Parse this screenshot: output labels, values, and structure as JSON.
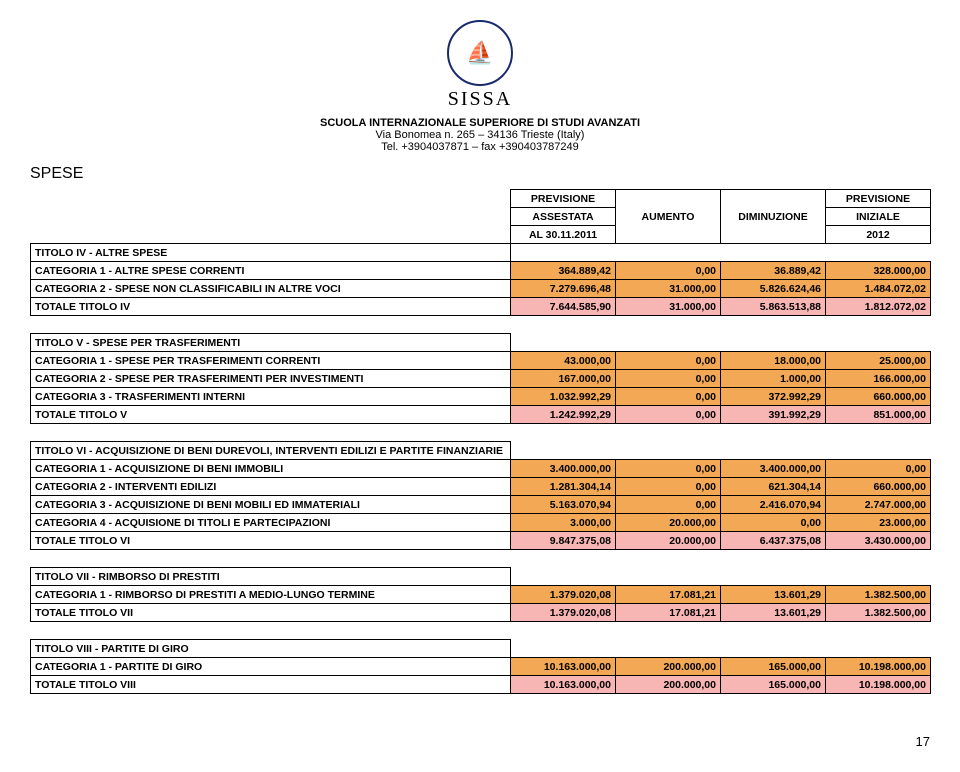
{
  "header": {
    "logo_sub": "SISSA",
    "org": "SCUOLA INTERNAZIONALE SUPERIORE DI STUDI AVANZATI",
    "addr": "Via Bonomea n. 265 – 34136 Trieste (Italy)",
    "tel": "Tel. +3904037871 – fax +390403787249"
  },
  "section": "SPESE",
  "columns": {
    "c1a": "PREVISIONE",
    "c1b": "ASSESTATA",
    "c1c": "AL 30.11.2011",
    "c2": "AUMENTO",
    "c3": "DIMINUZIONE",
    "c4a": "PREVISIONE",
    "c4b": "INIZIALE",
    "c4c": "2012"
  },
  "groups": [
    {
      "title": "TITOLO IV - ALTRE SPESE",
      "rows": [
        {
          "label": "CATEGORIA 1 - ALTRE SPESE CORRENTI",
          "v": [
            "364.889,42",
            "0,00",
            "36.889,42",
            "328.000,00"
          ]
        },
        {
          "label": "CATEGORIA 2 - SPESE NON CLASSIFICABILI IN ALTRE VOCI",
          "v": [
            "7.279.696,48",
            "31.000,00",
            "5.826.624,46",
            "1.484.072,02"
          ]
        }
      ],
      "total": {
        "label": "TOTALE TITOLO IV",
        "v": [
          "7.644.585,90",
          "31.000,00",
          "5.863.513,88",
          "1.812.072,02"
        ]
      }
    },
    {
      "title": "TITOLO V - SPESE PER TRASFERIMENTI",
      "rows": [
        {
          "label": "CATEGORIA 1 - SPESE PER TRASFERIMENTI CORRENTI",
          "v": [
            "43.000,00",
            "0,00",
            "18.000,00",
            "25.000,00"
          ]
        },
        {
          "label": "CATEGORIA 2 - SPESE PER TRASFERIMENTI PER INVESTIMENTI",
          "v": [
            "167.000,00",
            "0,00",
            "1.000,00",
            "166.000,00"
          ]
        },
        {
          "label": "CATEGORIA 3 - TRASFERIMENTI INTERNI",
          "v": [
            "1.032.992,29",
            "0,00",
            "372.992,29",
            "660.000,00"
          ]
        }
      ],
      "total": {
        "label": "TOTALE TITOLO V",
        "v": [
          "1.242.992,29",
          "0,00",
          "391.992,29",
          "851.000,00"
        ]
      }
    },
    {
      "title": "TITOLO VI - ACQUISIZIONE DI BENI DUREVOLI, INTERVENTI EDILIZI E PARTITE FINANZIARIE",
      "rows": [
        {
          "label": "CATEGORIA 1 - ACQUISIZIONE DI BENI IMMOBILI",
          "v": [
            "3.400.000,00",
            "0,00",
            "3.400.000,00",
            "0,00"
          ]
        },
        {
          "label": "CATEGORIA 2 - INTERVENTI EDILIZI",
          "v": [
            "1.281.304,14",
            "0,00",
            "621.304,14",
            "660.000,00"
          ]
        },
        {
          "label": "CATEGORIA 3 - ACQUISIZIONE DI BENI MOBILI ED IMMATERIALI",
          "v": [
            "5.163.070,94",
            "0,00",
            "2.416.070,94",
            "2.747.000,00"
          ]
        },
        {
          "label": "CATEGORIA 4 - ACQUISIONE DI TITOLI E PARTECIPAZIONI",
          "v": [
            "3.000,00",
            "20.000,00",
            "0,00",
            "23.000,00"
          ]
        }
      ],
      "total": {
        "label": "TOTALE TITOLO VI",
        "v": [
          "9.847.375,08",
          "20.000,00",
          "6.437.375,08",
          "3.430.000,00"
        ]
      }
    },
    {
      "title": "TITOLO VII - RIMBORSO DI PRESTITI",
      "rows": [
        {
          "label": "CATEGORIA 1 - RIMBORSO DI PRESTITI A MEDIO-LUNGO TERMINE",
          "v": [
            "1.379.020,08",
            "17.081,21",
            "13.601,29",
            "1.382.500,00"
          ]
        }
      ],
      "total": {
        "label": "TOTALE TITOLO VII",
        "v": [
          "1.379.020,08",
          "17.081,21",
          "13.601,29",
          "1.382.500,00"
        ]
      }
    },
    {
      "title": "TITOLO VIII - PARTITE DI GIRO",
      "rows": [
        {
          "label": "CATEGORIA 1 - PARTITE DI GIRO",
          "v": [
            "10.163.000,00",
            "200.000,00",
            "165.000,00",
            "10.198.000,00"
          ]
        }
      ],
      "total": {
        "label": "TOTALE TITOLO VIII",
        "v": [
          "10.163.000,00",
          "200.000,00",
          "165.000,00",
          "10.198.000,00"
        ]
      }
    }
  ],
  "page": "17",
  "style": {
    "cat_bg": "#f2a854",
    "tot_bg": "#f7b5b3",
    "border": "#000000",
    "font_size": 10.5
  }
}
